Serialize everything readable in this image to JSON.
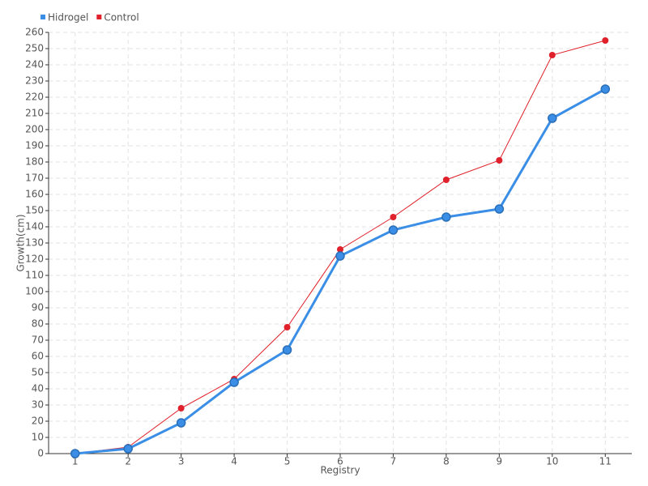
{
  "chart_data": {
    "type": "line",
    "x_label": "Registry",
    "y_label": "Growth(cm)",
    "x": [
      1,
      2,
      3,
      4,
      5,
      6,
      7,
      8,
      9,
      10,
      11
    ],
    "series": [
      {
        "name": "Hidrogel",
        "color": "#3a8ee6",
        "values": [
          0,
          3,
          19,
          44,
          64,
          122,
          138,
          146,
          151,
          207,
          225
        ]
      },
      {
        "name": "Control",
        "color": "#e0202a",
        "values": [
          0,
          4,
          28,
          46,
          78,
          126,
          146,
          169,
          181,
          246,
          255
        ]
      }
    ],
    "xlim": [
      0.5,
      11.5
    ],
    "xticks": [
      1,
      2,
      3,
      4,
      5,
      6,
      7,
      8,
      9,
      10,
      11
    ],
    "ylim": [
      0,
      260
    ],
    "yticks": [
      0,
      10,
      20,
      30,
      40,
      50,
      60,
      70,
      80,
      90,
      100,
      110,
      120,
      130,
      140,
      150,
      160,
      170,
      180,
      190,
      200,
      210,
      220,
      230,
      240,
      250,
      260
    ],
    "grid": true,
    "legend": "top-left"
  }
}
